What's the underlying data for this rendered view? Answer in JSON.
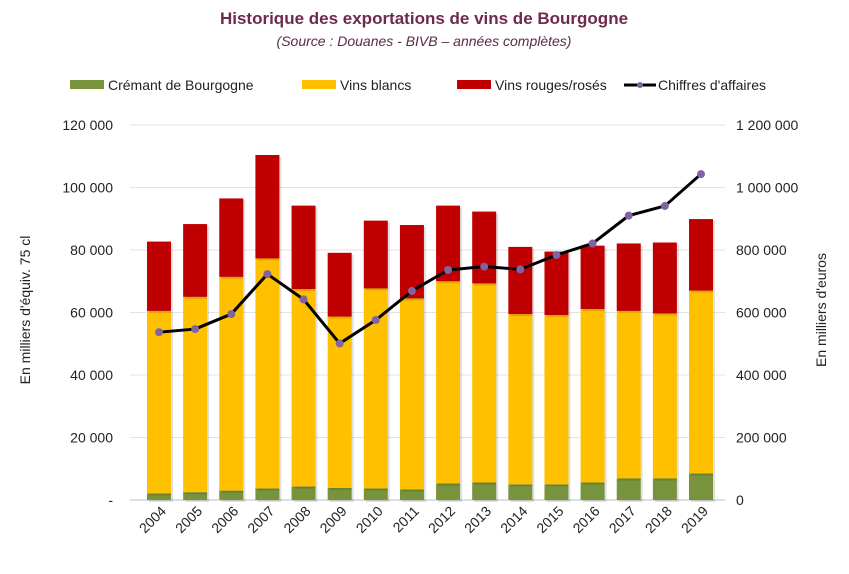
{
  "chart_data": {
    "type": "bar",
    "stacked": true,
    "title": "Historique des exportations de vins de Bourgogne",
    "subtitle": "(Source : Douanes - BIVB – années complètes)",
    "categories": [
      "2004",
      "2005",
      "2006",
      "2007",
      "2008",
      "2009",
      "2010",
      "2011",
      "2012",
      "2013",
      "2014",
      "2015",
      "2016",
      "2017",
      "2018",
      "2019"
    ],
    "series": [
      {
        "name": "Crémant de Bourgogne",
        "type": "bar",
        "axis": "left",
        "color": "#77933c",
        "values": [
          2100,
          2500,
          3000,
          3700,
          4300,
          3900,
          3700,
          3400,
          5300,
          5600,
          5000,
          5000,
          5600,
          6900,
          6900,
          8500
        ]
      },
      {
        "name": "Vins blancs",
        "type": "bar",
        "axis": "left",
        "color": "#ffc000",
        "values": [
          58400,
          62500,
          68400,
          73600,
          63200,
          54800,
          64000,
          61100,
          64700,
          63700,
          54500,
          54200,
          55500,
          53600,
          52800,
          58500
        ]
      },
      {
        "name": "Vins rouges/rosés",
        "type": "bar",
        "axis": "left",
        "color": "#c00000",
        "values": [
          22200,
          23300,
          25100,
          33100,
          26700,
          20400,
          21700,
          23500,
          24200,
          23000,
          21500,
          20300,
          20300,
          21600,
          22700,
          22900
        ]
      },
      {
        "name": "Chiffres d'affaires",
        "type": "line",
        "axis": "right",
        "color": "#000000",
        "marker_color": "#8064a2",
        "values": [
          537000,
          547000,
          595000,
          723000,
          642000,
          501000,
          576000,
          669000,
          736000,
          747000,
          738000,
          784000,
          821000,
          910000,
          941000,
          1043000
        ]
      }
    ],
    "y_left": {
      "label": "En milliers d'équiv. 75 cl",
      "range": [
        0,
        120000
      ],
      "ticks": [
        "-",
        "20 000",
        "40 000",
        "60 000",
        "80 000",
        "100 000",
        "120 000"
      ]
    },
    "y_right": {
      "label": "En milliers d'euros",
      "range": [
        0,
        1200000
      ],
      "ticks": [
        "0",
        "200 000",
        "400 000",
        "600 000",
        "800 000",
        "1 000 000",
        "1 200 000"
      ]
    },
    "grid": true,
    "legend_position": "top"
  }
}
